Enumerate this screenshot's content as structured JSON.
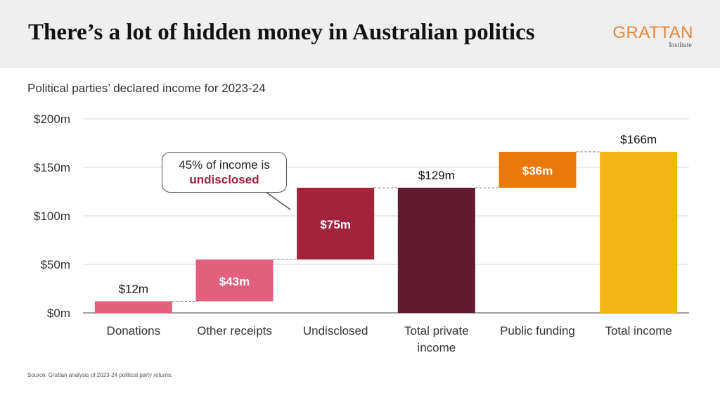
{
  "header": {
    "title": "There’s a lot of hidden money in Australian politics",
    "logo_main": "GRATTAN",
    "logo_sub": "Institute"
  },
  "subtitle": "Political parties’ declared income for 2023-24",
  "callout": {
    "line1": "45% of income is",
    "emphasis": "undisclosed"
  },
  "source": "Source: Grattan analysis of 2023-24 political party returns.",
  "chart_data": {
    "type": "bar",
    "subtype": "waterfall",
    "ylim": [
      0,
      200
    ],
    "yticks": [
      0,
      50,
      100,
      150,
      200
    ],
    "ytick_labels": [
      "$0m",
      "$50m",
      "$100m",
      "$150m",
      "$200m"
    ],
    "grid": true,
    "bars": [
      {
        "category": "Donations",
        "start": 0,
        "end": 12,
        "label": "$12m",
        "color": "#e0607e"
      },
      {
        "category": "Other receipts",
        "start": 12,
        "end": 55,
        "label": "$43m",
        "color": "#e0607e"
      },
      {
        "category": "Undisclosed",
        "start": 55,
        "end": 129,
        "label": "$75m",
        "color": "#a3233d"
      },
      {
        "category": "Total private income",
        "start": 0,
        "end": 129,
        "label": "$129m",
        "color": "#621a31"
      },
      {
        "category": "Public funding",
        "start": 129,
        "end": 166,
        "label": "$36m",
        "color": "#e8790c"
      },
      {
        "category": "Total income",
        "start": 0,
        "end": 166,
        "label": "$166m",
        "color": "#f2b417"
      }
    ]
  }
}
